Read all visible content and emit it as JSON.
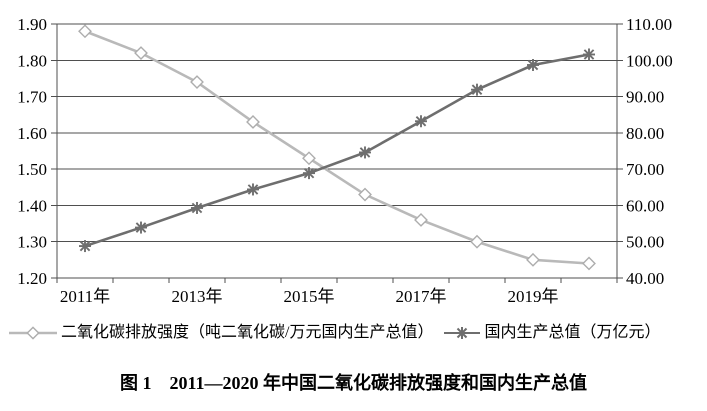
{
  "chart_data": {
    "type": "line",
    "title": "图 1　2011—2020 年中国二氧化碳排放强度和国内生产总值",
    "categories": [
      "2011年",
      "2012年",
      "2013年",
      "2014年",
      "2015年",
      "2016年",
      "2017年",
      "2018年",
      "2019年",
      "2020年"
    ],
    "x_tick_labels_shown": [
      "2011年",
      "2013年",
      "2015年",
      "2017年",
      "2019年"
    ],
    "left_axis": {
      "min": 1.2,
      "max": 1.9,
      "step": 0.1,
      "tick_labels_top_to_bottom": [
        "1.90",
        "1.80",
        "1.70",
        "1.60",
        "1.50",
        "1.40",
        "1.30",
        "1.20"
      ]
    },
    "right_axis": {
      "min": 40,
      "max": 110,
      "step": 10,
      "tick_labels_top_to_bottom": [
        "110.00",
        "100.00",
        "90.00",
        "80.00",
        "70.00",
        "60.00",
        "50.00",
        "40.00"
      ]
    },
    "series": [
      {
        "name": "二氧化碳排放强度（吨二氧化碳/万元国内生产总值）",
        "axis": "left",
        "marker": "diamond",
        "color": "#b9b9b9",
        "marker_fill": "#ffffff",
        "values": [
          1.88,
          1.82,
          1.74,
          1.63,
          1.53,
          1.43,
          1.36,
          1.3,
          1.25,
          1.24
        ]
      },
      {
        "name": "国内生产总值（万亿元）",
        "axis": "right",
        "marker": "asterisk",
        "color": "#6e6e6e",
        "marker_fill": "#6e6e6e",
        "values": [
          48.8,
          53.9,
          59.3,
          64.4,
          68.9,
          74.6,
          83.2,
          91.9,
          98.7,
          101.6
        ]
      }
    ],
    "grid": "horizontal",
    "legend_position": "bottom",
    "axis_color": "#4f4f4f"
  },
  "figure": {
    "caption": "图 1　2011—2020 年中国二氧化碳排放强度和国内生产总值"
  }
}
